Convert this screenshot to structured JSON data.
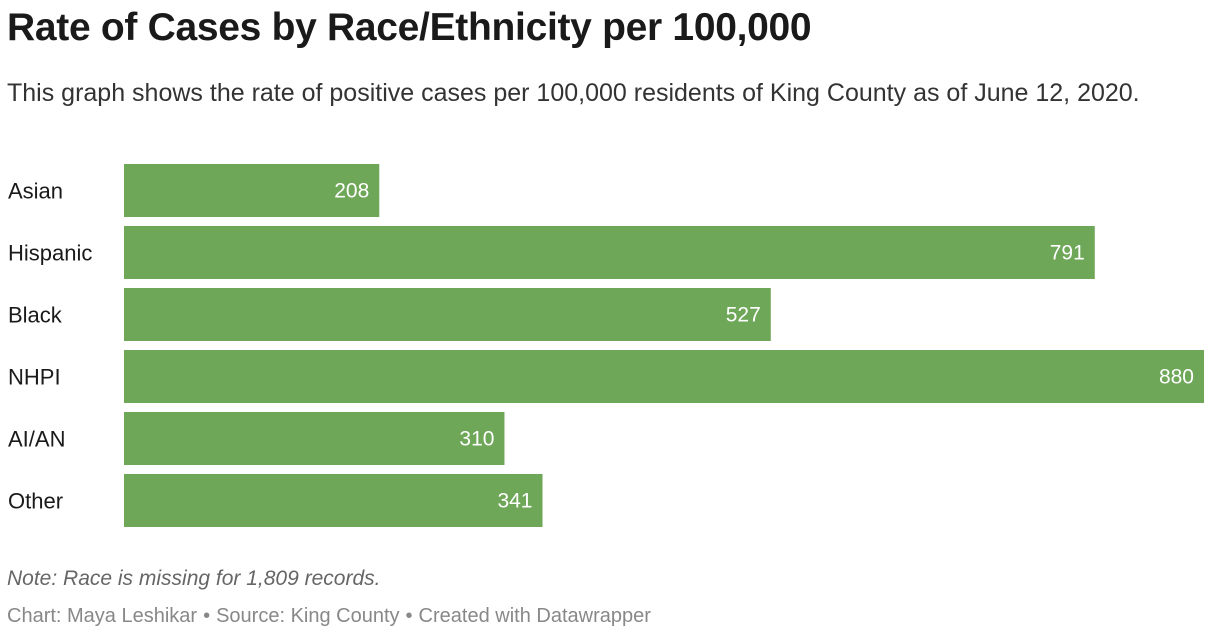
{
  "header": {
    "title": "Rate of Cases by Race/Ethnicity per 100,000",
    "subtitle": "This graph shows the rate of positive cases per 100,000 residents of King County as of June 12, 2020."
  },
  "chart_data": {
    "type": "bar",
    "orientation": "horizontal",
    "title": "Rate of Cases by Race/Ethnicity per 100,000",
    "categories": [
      "Asian",
      "Hispanic",
      "Black",
      "NHPI",
      "AI/AN",
      "Other"
    ],
    "values": [
      208,
      791,
      527,
      880,
      310,
      341
    ],
    "value_labels": [
      "208",
      "791",
      "527",
      "880",
      "310",
      "341"
    ],
    "xlim": [
      0,
      880
    ],
    "grid": false,
    "bar_color": "#6ea758",
    "value_label_color": "#ffffff"
  },
  "footer": {
    "notes": "Note: Race is missing for 1,809 records.",
    "chart_credit": "Chart: Maya Leshikar",
    "separator": "•",
    "source": "Source: King County",
    "created_with": "Created with Datawrapper"
  }
}
